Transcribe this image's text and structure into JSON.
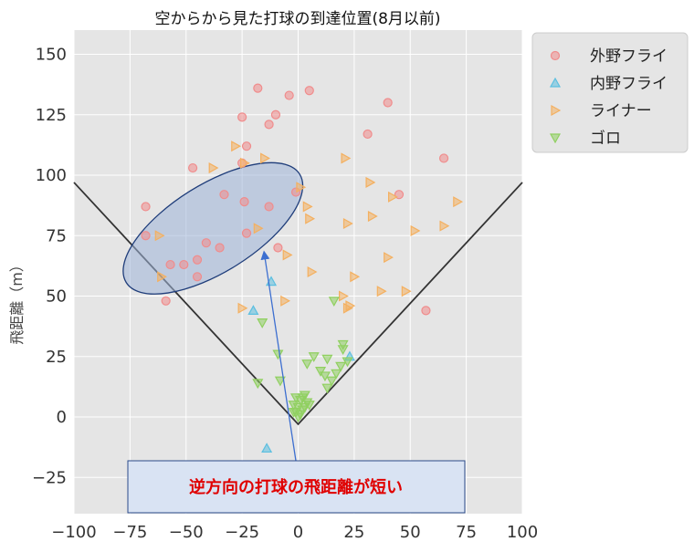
{
  "chart_data": {
    "type": "scatter",
    "title": "空からから見た打球の到達位置(8月以前)",
    "xlabel": "",
    "ylabel": "飛距離（m）",
    "xlim": [
      -100,
      100
    ],
    "ylim": [
      -40,
      160
    ],
    "xticks": [
      "−100",
      "−75",
      "−50",
      "−25",
      "0",
      "25",
      "50",
      "75",
      "100"
    ],
    "yticks": [
      "−25",
      "0",
      "25",
      "50",
      "75",
      "100",
      "125",
      "150"
    ],
    "xtick_values": [
      -100,
      -75,
      -50,
      -25,
      0,
      25,
      50,
      75,
      100
    ],
    "ytick_values": [
      -25,
      0,
      25,
      50,
      75,
      100,
      125,
      150
    ],
    "grid": true,
    "legend_position": "outside-top-right",
    "foul_lines": [
      {
        "x": [
          -100,
          0,
          100
        ],
        "y": [
          97,
          -3,
          97
        ]
      }
    ],
    "series": [
      {
        "name": "外野フライ",
        "marker": "circle",
        "color": "#f08c8c",
        "points": [
          [
            -18,
            136
          ],
          [
            5,
            135
          ],
          [
            -10,
            125
          ],
          [
            -4,
            133
          ],
          [
            -25,
            124
          ],
          [
            -13,
            121
          ],
          [
            40,
            130
          ],
          [
            -23,
            112
          ],
          [
            31,
            117
          ],
          [
            -25,
            105
          ],
          [
            65,
            107
          ],
          [
            -47,
            103
          ],
          [
            -33,
            92
          ],
          [
            -1,
            93
          ],
          [
            45,
            92
          ],
          [
            -68,
            87
          ],
          [
            -24,
            89
          ],
          [
            -13,
            87
          ],
          [
            -68,
            75
          ],
          [
            -23,
            76
          ],
          [
            -41,
            72
          ],
          [
            -35,
            70
          ],
          [
            -9,
            70
          ],
          [
            -57,
            63
          ],
          [
            -51,
            63
          ],
          [
            -45,
            65
          ],
          [
            -45,
            58
          ],
          [
            -59,
            48
          ],
          [
            57,
            44
          ]
        ]
      },
      {
        "name": "内野フライ",
        "marker": "triangle-up",
        "color": "#5cbfe0",
        "points": [
          [
            -12,
            56
          ],
          [
            -20,
            44
          ],
          [
            23,
            25
          ],
          [
            -14,
            -13
          ]
        ]
      },
      {
        "name": "ライナー",
        "marker": "triangle-right",
        "color": "#f4b060",
        "points": [
          [
            -28,
            112
          ],
          [
            -24,
            105
          ],
          [
            -15,
            107
          ],
          [
            -38,
            103
          ],
          [
            21,
            107
          ],
          [
            32,
            97
          ],
          [
            1,
            95
          ],
          [
            42,
            91
          ],
          [
            71,
            89
          ],
          [
            4,
            87
          ],
          [
            5,
            82
          ],
          [
            22,
            80
          ],
          [
            33,
            83
          ],
          [
            52,
            77
          ],
          [
            65,
            79
          ],
          [
            -62,
            75
          ],
          [
            -18,
            78
          ],
          [
            -5,
            67
          ],
          [
            40,
            66
          ],
          [
            -61,
            58
          ],
          [
            6,
            60
          ],
          [
            25,
            58
          ],
          [
            37,
            52
          ],
          [
            48,
            52
          ],
          [
            20,
            50
          ],
          [
            -6,
            48
          ],
          [
            -25,
            45
          ],
          [
            22,
            45
          ],
          [
            23,
            46
          ]
        ]
      },
      {
        "name": "ゴロ",
        "marker": "triangle-down",
        "color": "#90d060",
        "points": [
          [
            -16,
            39
          ],
          [
            16,
            48
          ],
          [
            20,
            30
          ],
          [
            20,
            28
          ],
          [
            -9,
            26
          ],
          [
            7,
            25
          ],
          [
            13,
            24
          ],
          [
            22,
            23
          ],
          [
            4,
            22
          ],
          [
            10,
            19
          ],
          [
            17,
            18
          ],
          [
            19,
            21
          ],
          [
            12,
            17
          ],
          [
            -8,
            15
          ],
          [
            -18,
            14
          ],
          [
            15,
            15
          ],
          [
            13,
            12
          ],
          [
            3,
            9
          ],
          [
            -1,
            8
          ],
          [
            1,
            7
          ],
          [
            4,
            6
          ],
          [
            -2,
            5
          ],
          [
            0,
            4
          ],
          [
            2,
            3
          ],
          [
            -1,
            2
          ],
          [
            3,
            4
          ],
          [
            1,
            1
          ],
          [
            0,
            0
          ],
          [
            -2,
            2
          ],
          [
            5,
            5
          ],
          [
            2,
            8
          ]
        ]
      }
    ],
    "annotation": {
      "text": "逆方向の打球の飛距離が短い",
      "ellipse_center": [
        -38,
        78
      ],
      "ellipse_fill": "#9fb5d8",
      "ellipse_stroke": "#1f3d7a",
      "arrow_tip": [
        -15,
        67
      ],
      "arrow_color": "#3d6fd0",
      "box_fill": "#d9e3f3",
      "box_stroke": "#2a4a8a"
    }
  }
}
